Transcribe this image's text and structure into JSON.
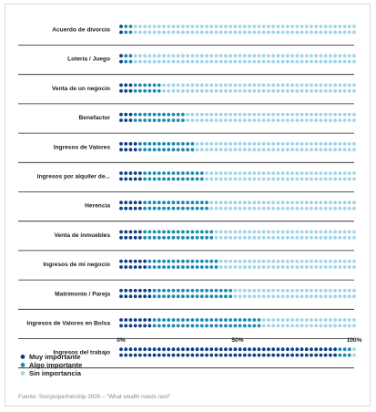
{
  "colors": {
    "muy": "#0c3e86",
    "algo": "#1a8ab2",
    "sin": "#9fd4ea",
    "separator": "#222222"
  },
  "chart_data": {
    "type": "bar",
    "orientation": "horizontal",
    "stacked": true,
    "percent": true,
    "categories": [
      "Acuerdo de divorcio",
      "Lotería / Juego",
      "Venta de un negocio",
      "Benefactor",
      "Ingresos de Valores",
      "Ingresos por alquiler de...",
      "Herencia",
      "Venta de inmuebles",
      "Ingresos de mi negocio",
      "Matrimonio / Pareja",
      "Ingresos de Valores en Bolsa",
      "Ingresos del trabajo"
    ],
    "series": [
      {
        "name": "Muy importante",
        "values": [
          2,
          2,
          6,
          6,
          8,
          10,
          10,
          10,
          12,
          13,
          13,
          92
        ]
      },
      {
        "name": "Algo importante",
        "values": [
          4,
          4,
          12,
          22,
          24,
          26,
          28,
          30,
          30,
          34,
          46,
          5
        ]
      },
      {
        "name": "Sin importancia",
        "values": [
          94,
          94,
          82,
          72,
          68,
          64,
          62,
          60,
          58,
          53,
          41,
          3
        ]
      }
    ],
    "xticks": [
      "0%",
      "50%",
      "100%"
    ],
    "xlim": [
      0,
      100
    ],
    "legend": "bottom-left",
    "grid": false
  },
  "source": "Fuente: Scorpiopartnership 2009 – \"What wealth needs next\""
}
